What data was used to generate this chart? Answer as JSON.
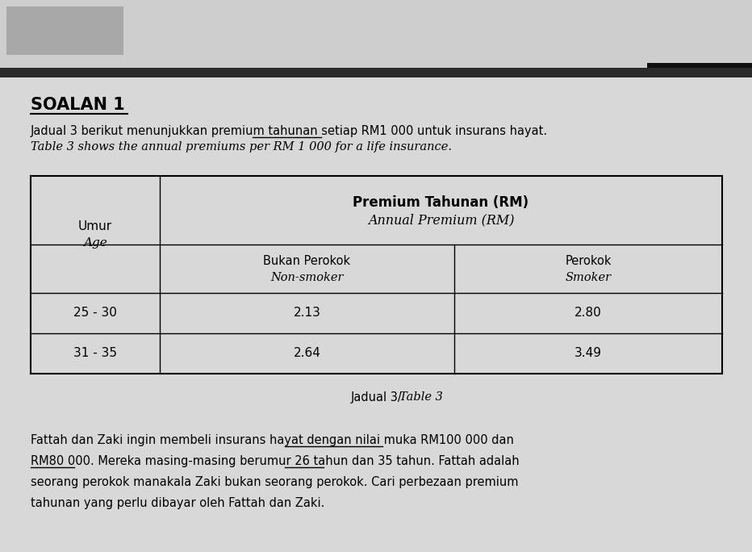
{
  "title": "SOALAN 1",
  "intro_line1_part1": "Jadual 3 berikut menunjukkan premium tahunan ",
  "intro_line1_underlined": "setiap RM1 000",
  "intro_line1_part2": " untuk insurans hayat.",
  "intro_line2": "Table 3 shows the annual premiums per RM 1 000 for a life insurance.",
  "table_col1_header": [
    "Umur",
    "Age"
  ],
  "table_col23_header_bold": "Premium Tahunan (RM)",
  "table_col23_header_italic": "Annual Premium (RM)",
  "table_col2_header": [
    "Bukan Perokok",
    "Non-smoker"
  ],
  "table_col3_header": [
    "Perokok",
    "Smoker"
  ],
  "table_data": [
    [
      "25 - 30",
      "2.13",
      "2.80"
    ],
    [
      "31 - 35",
      "2.64",
      "3.49"
    ]
  ],
  "table_caption": "Jadual 3/",
  "table_caption_italic": "Table 3",
  "para_line1_normal": "Fattah dan Zaki ingin membeli insurans hayat dengan ",
  "para_line1_underlined": "nilai muka RM100 000",
  "para_line1_end": " dan",
  "para_line2_underlined1": "RM80 000.",
  "para_line2_middle": " Mereka masing-masing berumur 26 tahun dan ",
  "para_line2_underlined2": "35 tahun",
  "para_line2_end": ". Fattah adalah",
  "para_line3": "seorang perokok manakala Zaki bukan seorang perokok. Cari perbezaan premium",
  "para_line4": "tahunan yang perlu dibayar oleh Fattah dan Zaki.",
  "bg_color": "#cecece",
  "page_bg": "#d4d4d4",
  "black_box_color": "#111111",
  "gray_box_color": "#a8a8a8",
  "dark_line_color": "#2a2a2a",
  "table_bg": "#e0e0e0"
}
